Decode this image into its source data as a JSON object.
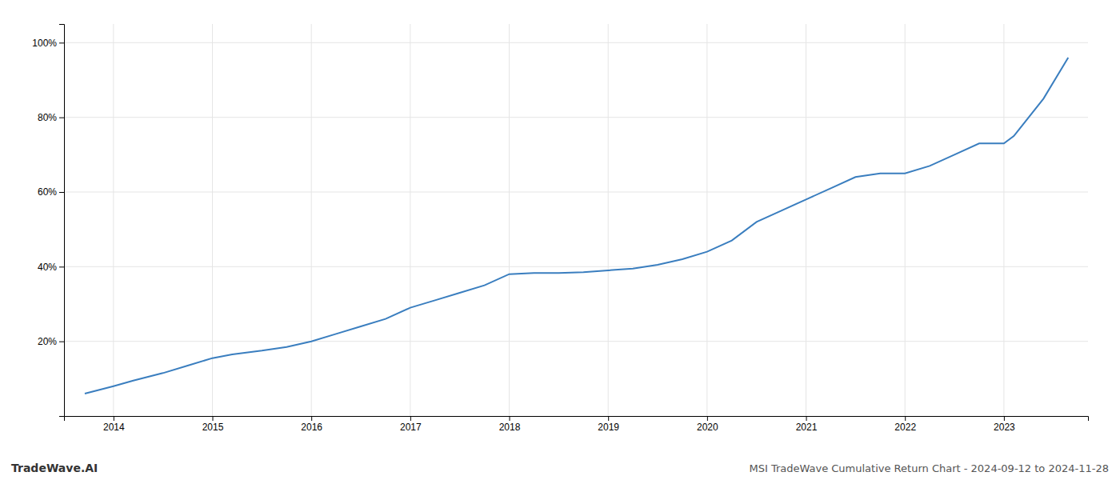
{
  "chart_data": {
    "type": "line",
    "title": "MSI TradeWave Cumulative Return Chart - 2024-09-12 to 2024-11-28",
    "annotations": [
      "TradeWave.AI"
    ],
    "color": "#3a7ebf",
    "x": [
      2013.71,
      2014.0,
      2014.2,
      2014.5,
      2014.75,
      2015.0,
      2015.2,
      2015.5,
      2015.75,
      2016.0,
      2016.25,
      2016.5,
      2016.75,
      2017.0,
      2017.25,
      2017.5,
      2017.75,
      2018.0,
      2018.25,
      2018.5,
      2018.75,
      2019.0,
      2019.1,
      2019.25,
      2019.5,
      2019.75,
      2020.0,
      2020.25,
      2020.5,
      2020.75,
      2021.0,
      2021.25,
      2021.5,
      2021.75,
      2022.0,
      2022.25,
      2022.5,
      2022.75,
      2023.0,
      2023.1,
      2023.4,
      2023.65
    ],
    "values": [
      6,
      8,
      9.5,
      11.5,
      13.5,
      15.5,
      16.5,
      17.5,
      18.5,
      20,
      22,
      24,
      26,
      29,
      31,
      33,
      35,
      38,
      38.3,
      38.3,
      38.5,
      39,
      39.2,
      39.5,
      40.5,
      42,
      44,
      47,
      52,
      55,
      58,
      61,
      64,
      65,
      65,
      67,
      70,
      73,
      73,
      75,
      85,
      96
    ],
    "xlim": [
      2013.5,
      2023.85
    ],
    "ylim": [
      0,
      105
    ],
    "xticks": [
      2014,
      2015,
      2016,
      2017,
      2018,
      2019,
      2020,
      2021,
      2022,
      2023
    ],
    "yticks": [
      {
        "value": 20,
        "label": "20%"
      },
      {
        "value": 40,
        "label": "40%"
      },
      {
        "value": 60,
        "label": "60%"
      },
      {
        "value": 80,
        "label": "80%"
      },
      {
        "value": 100,
        "label": "100%"
      }
    ],
    "grid": true
  }
}
